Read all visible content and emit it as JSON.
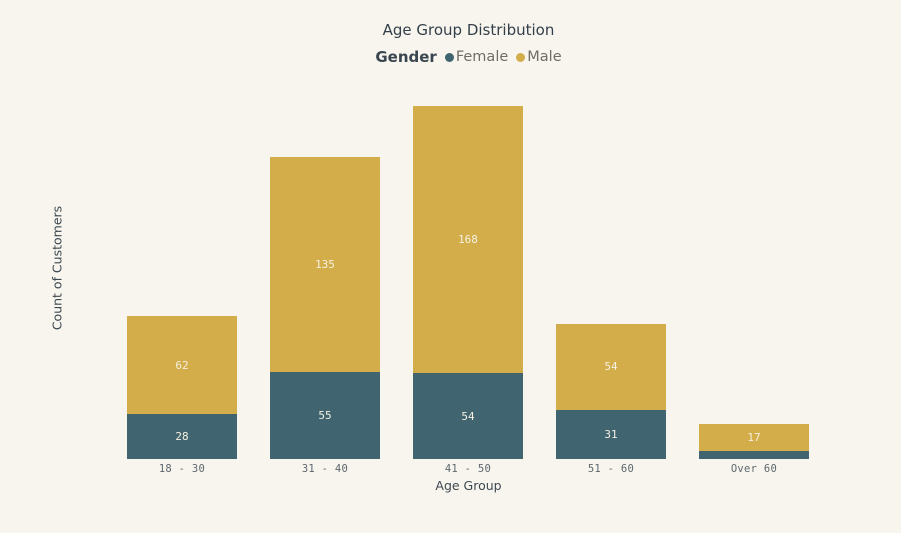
{
  "title": "Age Group Distribution",
  "legend": {
    "title": "Gender",
    "items": [
      {
        "label": "Female",
        "color": "#406470"
      },
      {
        "label": "Male",
        "color": "#d2ad49"
      }
    ]
  },
  "axes": {
    "x_title": "Age Group",
    "y_title": "Count of Customers"
  },
  "chart_data": {
    "type": "bar",
    "stacked": true,
    "title": "Age Group Distribution",
    "xlabel": "Age Group",
    "ylabel": "Count of Customers",
    "categories": [
      "18 - 30",
      "31 - 40",
      "41 - 50",
      "51 - 60",
      "Over 60"
    ],
    "series": [
      {
        "name": "Female",
        "color": "#406470",
        "values": [
          28,
          55,
          54,
          31,
          5
        ],
        "labels": [
          "28",
          "55",
          "54",
          "31",
          ""
        ]
      },
      {
        "name": "Male",
        "color": "#d2ad49",
        "values": [
          62,
          135,
          168,
          54,
          17
        ],
        "labels": [
          "62",
          "135",
          "168",
          "54",
          "17"
        ]
      }
    ],
    "totals": [
      90,
      190,
      222,
      85,
      22
    ],
    "ylim": [
      0,
      232
    ],
    "grid": false,
    "y_ticks_shown": false,
    "legend_position": "top"
  },
  "colors": {
    "background": "#f8f5ee",
    "female": "#406470",
    "male": "#d2ad49",
    "bar_label_text": "#f6f0e1",
    "tick_text": "#5d676d",
    "title_text": "#33404a"
  }
}
